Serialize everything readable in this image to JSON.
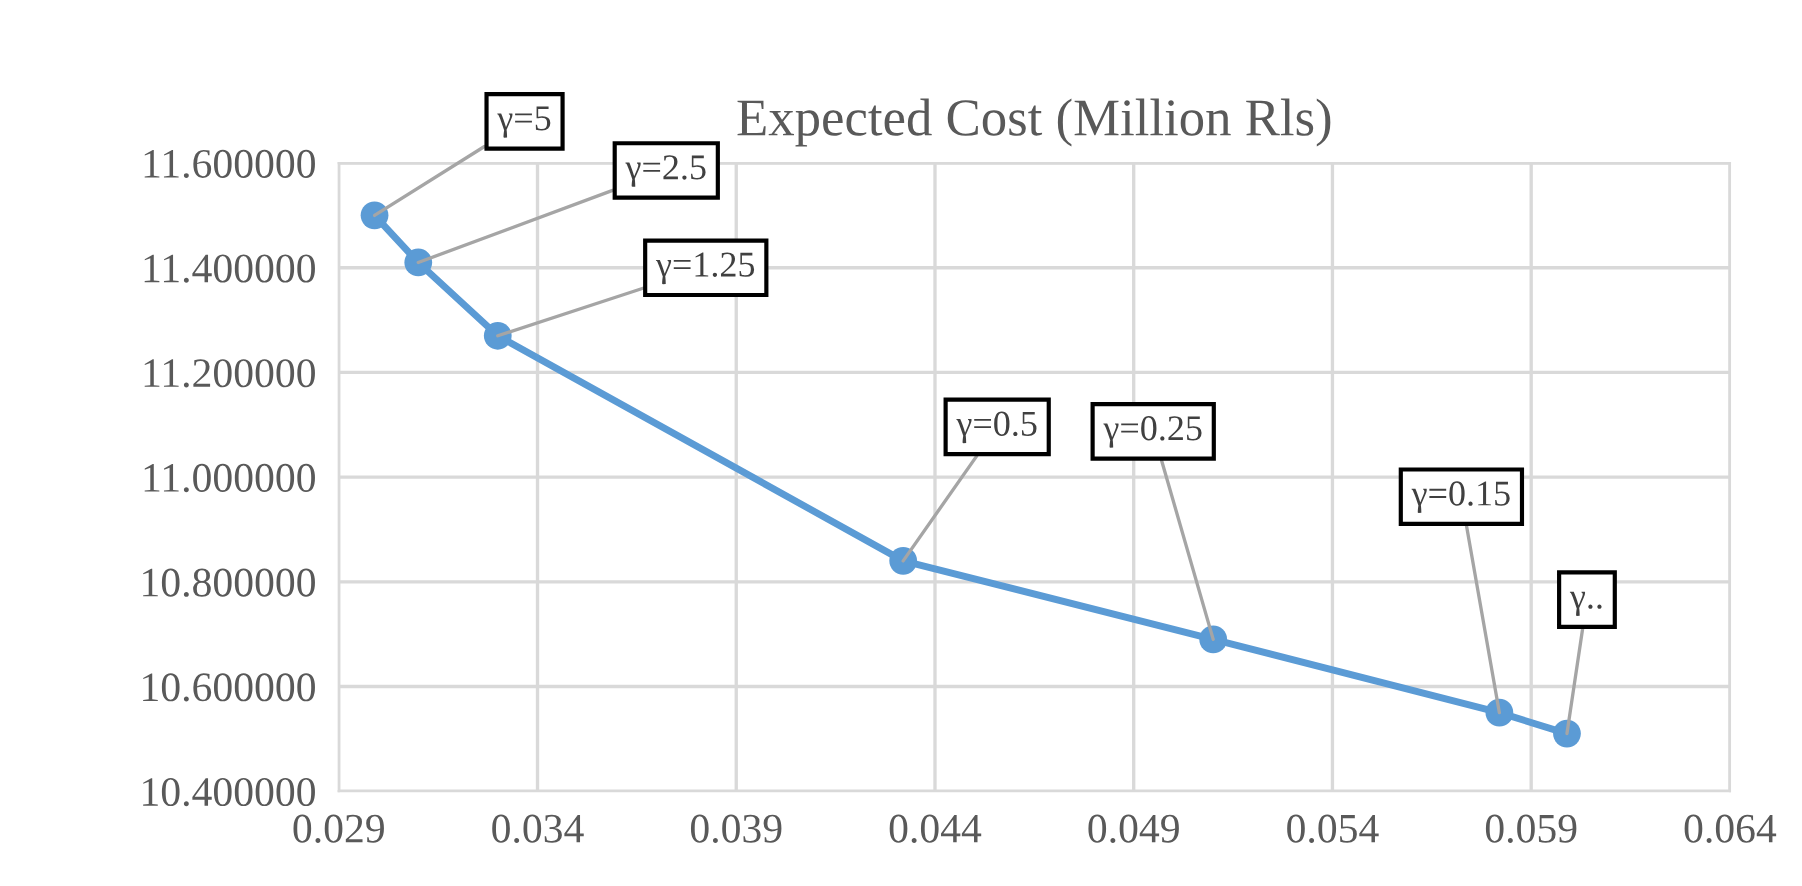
{
  "chart_data": {
    "type": "line",
    "title": "Expected Cost (Million Rls)",
    "x": [
      0.0299,
      0.031,
      0.033,
      0.0432,
      0.051,
      0.0582,
      0.0599
    ],
    "series": [
      {
        "color": "#5b9bd5",
        "values": [
          11.5,
          11.41,
          11.27,
          10.84,
          10.69,
          10.55,
          10.51
        ]
      }
    ],
    "xlim": [
      0.029,
      0.064
    ],
    "xticks": [
      0.029,
      0.034,
      0.039,
      0.044,
      0.049,
      0.054,
      0.059,
      0.064
    ],
    "ylim": [
      10.4,
      11.6
    ],
    "yticks": [
      {
        "value": 10.4,
        "label": "10.400000"
      },
      {
        "value": 10.6,
        "label": "10.600000"
      },
      {
        "value": 10.8,
        "label": "10.800000"
      },
      {
        "value": 11.0,
        "label": "11.000000"
      },
      {
        "value": 11.2,
        "label": "11.200000"
      },
      {
        "value": 11.4,
        "label": "11.400000"
      },
      {
        "value": 11.6,
        "label": "11.600000"
      }
    ],
    "grid": true,
    "legend": false,
    "marker": "circle",
    "line_style": "solid",
    "annotations": [
      {
        "text": "γ=5",
        "x": 0.0299,
        "y": 11.5
      },
      {
        "text": "γ=2.5",
        "x": 0.031,
        "y": 11.41
      },
      {
        "text": "γ=1.25",
        "x": 0.033,
        "y": 11.27
      },
      {
        "text": "γ=0.5",
        "x": 0.0432,
        "y": 10.84
      },
      {
        "text": "γ=0.25",
        "x": 0.051,
        "y": 10.69
      },
      {
        "text": "γ=0.15",
        "x": 0.0582,
        "y": 10.55
      },
      {
        "text": "γ..",
        "x": 0.0599,
        "y": 10.51
      }
    ]
  }
}
